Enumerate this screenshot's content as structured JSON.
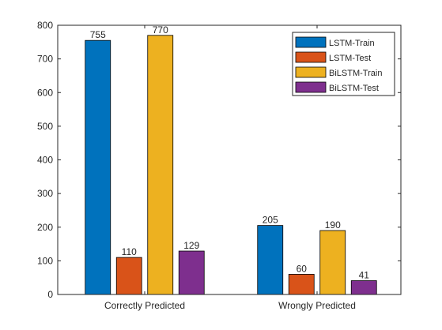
{
  "chart_data": {
    "type": "bar",
    "categories": [
      "Correctly Predicted",
      "Wrongly Predicted"
    ],
    "series": [
      {
        "name": "LSTM-Train",
        "values": [
          755,
          205
        ],
        "color": "#0072BD"
      },
      {
        "name": "LSTM-Test",
        "values": [
          110,
          60
        ],
        "color": "#D95319"
      },
      {
        "name": "BiLSTM-Train",
        "values": [
          770,
          190
        ],
        "color": "#EDB120"
      },
      {
        "name": "BiLSTM-Test",
        "values": [
          129,
          41
        ],
        "color": "#7E2F8E"
      }
    ],
    "ylim": [
      0,
      800
    ],
    "yticks": [
      0,
      100,
      200,
      300,
      400,
      500,
      600,
      700,
      800
    ],
    "title": "",
    "xlabel": "",
    "ylabel": "",
    "legend_position": "top-right",
    "grid": false
  }
}
